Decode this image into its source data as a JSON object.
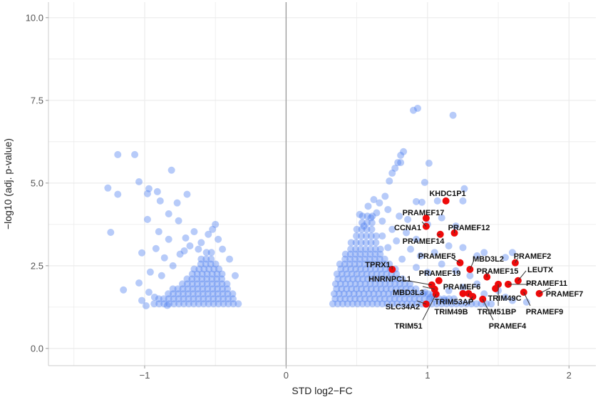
{
  "chart_data": {
    "type": "scatter",
    "title": "",
    "xlabel": "STD log2−FC",
    "ylabel": "−log10 (adj. p-value)",
    "xlim": [
      -1.68,
      2.19
    ],
    "ylim": [
      -0.52,
      10.47
    ],
    "xticks": [
      {
        "v": -1,
        "label": "−1"
      },
      {
        "v": 0,
        "label": "0"
      },
      {
        "v": 1,
        "label": "1"
      },
      {
        "v": 2,
        "label": "2"
      }
    ],
    "yticks": [
      {
        "v": 0,
        "label": "0.0"
      },
      {
        "v": 2.5,
        "label": "2.5"
      },
      {
        "v": 5,
        "label": "5.0"
      },
      {
        "v": 7.5,
        "label": "7.5"
      },
      {
        "v": 10,
        "label": "10.0"
      }
    ],
    "grid": true,
    "colors": {
      "background_points": "#4a7cf0",
      "highlight_points": "#ee0a0a",
      "zero_line": "#999999",
      "grid": "#ebebeb"
    },
    "background_dense_rows": [
      {
        "y": 1.35,
        "x0": 0.33,
        "x1": 1.45
      },
      {
        "y": 1.5,
        "x0": 0.33,
        "x1": 1.2
      },
      {
        "y": 1.65,
        "x0": 0.34,
        "x1": 1.05
      },
      {
        "y": 1.8,
        "x0": 0.34,
        "x1": 0.95
      },
      {
        "y": 1.95,
        "x0": 0.35,
        "x1": 0.9
      },
      {
        "y": 2.1,
        "x0": 0.35,
        "x1": 0.85
      },
      {
        "y": 2.25,
        "x0": 0.36,
        "x1": 0.8
      },
      {
        "y": 2.4,
        "x0": 0.37,
        "x1": 0.78
      },
      {
        "y": 2.55,
        "x0": 0.38,
        "x1": 0.75
      },
      {
        "y": 2.7,
        "x0": 0.4,
        "x1": 0.72
      },
      {
        "y": 2.85,
        "x0": 0.42,
        "x1": 0.7
      },
      {
        "y": 3.0,
        "x0": 0.44,
        "x1": 0.68
      },
      {
        "y": 3.2,
        "x0": 0.46,
        "x1": 0.66
      },
      {
        "y": 3.4,
        "x0": 0.48,
        "x1": 0.65
      },
      {
        "y": 3.6,
        "x0": 0.5,
        "x1": 0.62
      },
      {
        "y": 3.8,
        "x0": 0.52,
        "x1": 0.62
      },
      {
        "y": 4.0,
        "x0": 0.54,
        "x1": 0.62
      },
      {
        "y": 1.35,
        "x0": -0.95,
        "x1": -0.33
      },
      {
        "y": 1.5,
        "x0": -0.9,
        "x1": -0.35
      },
      {
        "y": 1.65,
        "x0": -0.85,
        "x1": -0.37
      },
      {
        "y": 1.8,
        "x0": -0.8,
        "x1": -0.38
      },
      {
        "y": 1.95,
        "x0": -0.75,
        "x1": -0.4
      },
      {
        "y": 2.1,
        "x0": -0.7,
        "x1": -0.42
      },
      {
        "y": 2.25,
        "x0": -0.68,
        "x1": -0.44
      },
      {
        "y": 2.4,
        "x0": -0.65,
        "x1": -0.46
      },
      {
        "y": 2.55,
        "x0": -0.62,
        "x1": -0.48
      },
      {
        "y": 2.7,
        "x0": -0.6,
        "x1": -0.5
      },
      {
        "y": 2.9,
        "x0": -0.58,
        "x1": -0.52
      }
    ],
    "background_points": [
      [
        -1.19,
        5.86
      ],
      [
        -1.07,
        5.86
      ],
      [
        -0.81,
        5.39
      ],
      [
        -1.04,
        5.04
      ],
      [
        -1.26,
        4.85
      ],
      [
        -1.19,
        4.66
      ],
      [
        -0.97,
        4.83
      ],
      [
        -0.98,
        4.68
      ],
      [
        -0.91,
        4.74
      ],
      [
        -0.7,
        4.66
      ],
      [
        -0.89,
        4.46
      ],
      [
        -0.77,
        4.4
      ],
      [
        -0.83,
        4.07
      ],
      [
        -0.98,
        3.9
      ],
      [
        -1.24,
        3.51
      ],
      [
        -0.76,
        3.86
      ],
      [
        -0.9,
        3.53
      ],
      [
        -0.83,
        3.3
      ],
      [
        -1.02,
        2.89
      ],
      [
        -1.15,
        1.77
      ],
      [
        -1.04,
        1.98
      ],
      [
        -0.97,
        1.7
      ],
      [
        -0.99,
        1.29
      ],
      [
        -0.96,
        2.31
      ],
      [
        -0.92,
        3.02
      ],
      [
        -0.86,
        2.74
      ],
      [
        -0.71,
        3.34
      ],
      [
        -0.68,
        3.1
      ],
      [
        -0.65,
        3.53
      ],
      [
        -0.5,
        3.75
      ],
      [
        -0.52,
        3.6
      ],
      [
        -0.55,
        3.45
      ],
      [
        -0.6,
        3.2
      ],
      [
        -0.48,
        3.3
      ],
      [
        -0.45,
        3.0
      ],
      [
        -0.88,
        2.2
      ],
      [
        -0.8,
        2.5
      ],
      [
        -0.75,
        2.85
      ],
      [
        -0.93,
        1.55
      ],
      [
        -1.02,
        1.45
      ],
      [
        -0.84,
        1.3
      ],
      [
        -0.72,
        2.95
      ],
      [
        -0.62,
        3.0
      ],
      [
        -0.4,
        2.7
      ],
      [
        -0.36,
        2.2
      ],
      [
        0.9,
        7.2
      ],
      [
        0.93,
        7.26
      ],
      [
        1.18,
        7.05
      ],
      [
        0.83,
        5.95
      ],
      [
        0.81,
        5.84
      ],
      [
        0.79,
        5.62
      ],
      [
        0.81,
        5.62
      ],
      [
        0.77,
        5.45
      ],
      [
        0.75,
        5.3
      ],
      [
        0.73,
        5.06
      ],
      [
        1.01,
        5.6
      ],
      [
        0.98,
        5.02
      ],
      [
        1.26,
        4.83
      ],
      [
        1.25,
        4.46
      ],
      [
        1.07,
        4.46
      ],
      [
        0.92,
        4.44
      ],
      [
        0.96,
        4.42
      ],
      [
        0.7,
        4.6
      ],
      [
        0.66,
        4.4
      ],
      [
        0.62,
        4.5
      ],
      [
        0.58,
        4.3
      ],
      [
        0.72,
        4.2
      ],
      [
        0.8,
        4.0
      ],
      [
        0.86,
        3.9
      ],
      [
        0.68,
        3.85
      ],
      [
        0.75,
        3.6
      ],
      [
        0.85,
        3.5
      ],
      [
        0.92,
        3.3
      ],
      [
        0.78,
        3.25
      ],
      [
        0.72,
        3.05
      ],
      [
        0.88,
        3.0
      ],
      [
        0.95,
        2.8
      ],
      [
        1.05,
        2.9
      ],
      [
        1.15,
        3.1
      ],
      [
        1.25,
        3.05
      ],
      [
        1.35,
        2.8
      ],
      [
        1.4,
        2.9
      ],
      [
        1.55,
        2.75
      ],
      [
        1.6,
        2.9
      ],
      [
        1.1,
        2.55
      ],
      [
        1.2,
        2.35
      ],
      [
        1.3,
        2.2
      ],
      [
        1.0,
        2.3
      ],
      [
        0.92,
        2.45
      ],
      [
        1.35,
        1.95
      ],
      [
        1.25,
        1.85
      ],
      [
        1.15,
        1.75
      ],
      [
        1.4,
        1.65
      ],
      [
        1.55,
        1.55
      ],
      [
        1.6,
        1.45
      ],
      [
        1.7,
        1.4
      ],
      [
        1.5,
        1.75
      ],
      [
        0.55,
        3.7
      ],
      [
        0.6,
        3.95
      ],
      [
        0.64,
        4.1
      ],
      [
        0.52,
        4.05
      ],
      [
        1.0,
        3.75
      ],
      [
        1.1,
        3.95
      ],
      [
        1.2,
        3.7
      ],
      [
        0.68,
        3.4
      ],
      [
        0.82,
        2.7
      ],
      [
        1.02,
        1.55
      ],
      [
        1.12,
        1.45
      ],
      [
        0.98,
        1.7
      ]
    ],
    "highlighted": [
      {
        "gene": "KHDC1P1",
        "x": 1.13,
        "y": 4.46
      },
      {
        "gene": "PRAMEF17",
        "x": 0.99,
        "y": 3.94
      },
      {
        "gene": "CCNA1",
        "x": 0.99,
        "y": 3.69
      },
      {
        "gene": "PRAMEF12",
        "x": 1.19,
        "y": 3.49
      },
      {
        "gene": "PRAMEF14",
        "x": 1.09,
        "y": 3.45
      },
      {
        "gene": "PRAMEF5",
        "x": 1.23,
        "y": 2.59
      },
      {
        "gene": "MBD3L2",
        "x": 1.3,
        "y": 2.39
      },
      {
        "gene": "PRAMEF2",
        "x": 1.62,
        "y": 2.59
      },
      {
        "gene": "TPRX1",
        "x": 0.75,
        "y": 2.39
      },
      {
        "gene": "PRAMEF15",
        "x": 1.42,
        "y": 2.16
      },
      {
        "gene": "LEUTX",
        "x": 1.64,
        "y": 2.05
      },
      {
        "gene": "PRAMEF19",
        "x": 1.08,
        "y": 2.05
      },
      {
        "gene": "HNRNPCL1",
        "x": 1.03,
        "y": 1.92
      },
      {
        "gene": "PRAMEF11",
        "x": 1.57,
        "y": 1.94
      },
      {
        "gene": "PRAMEF6",
        "x": 1.25,
        "y": 1.66
      },
      {
        "gene": "MBD3L3",
        "x": 1.05,
        "y": 1.79
      },
      {
        "gene": "PRAMEF7",
        "x": 1.79,
        "y": 1.66
      },
      {
        "gene": "TRIM49C",
        "x": 1.48,
        "y": 1.81
      },
      {
        "gene": "TRIM53AP",
        "x": 1.29,
        "y": 1.66
      },
      {
        "gene": "SLC34A2",
        "x": 0.99,
        "y": 1.34
      },
      {
        "gene": "TRIM49B",
        "x": 1.32,
        "y": 1.57
      },
      {
        "gene": "TRIM51BP",
        "x": 1.5,
        "y": 1.94
      },
      {
        "gene": "PRAMEF9",
        "x": 1.68,
        "y": 1.7
      },
      {
        "gene": "TRIM51",
        "x": 1.06,
        "y": 1.64
      },
      {
        "gene": "PRAMEF4",
        "x": 1.39,
        "y": 1.49
      }
    ]
  }
}
